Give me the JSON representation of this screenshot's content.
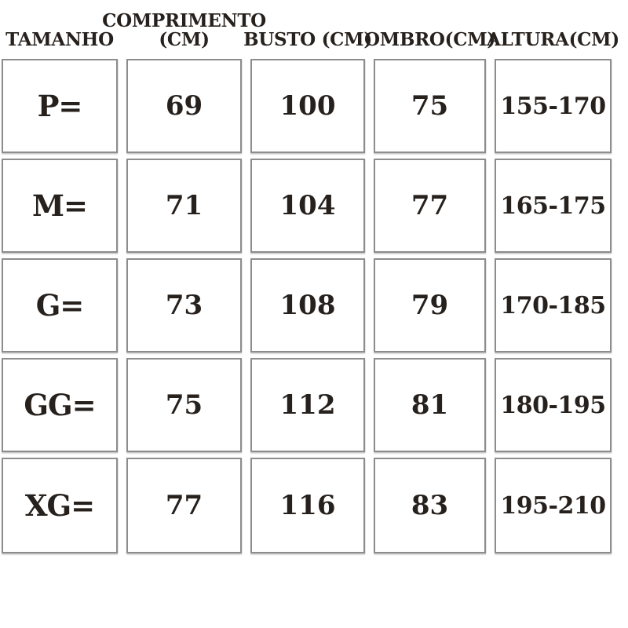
{
  "page": {
    "background": "#ffffff",
    "text_color": "#27211d",
    "border_color": "#8d8d8d"
  },
  "table": {
    "headers": [
      "TAMANHO",
      "COMPRIMENTO\n(CM)",
      "BUSTO (CM)",
      "OMBRO(CM)",
      "ALTURA(CM)"
    ],
    "rows": [
      {
        "size": "P=",
        "comprimento": "69",
        "busto": "100",
        "ombro": "75",
        "altura": "155-170"
      },
      {
        "size": "M=",
        "comprimento": "71",
        "busto": "104",
        "ombro": "77",
        "altura": "165-175"
      },
      {
        "size": "G=",
        "comprimento": "73",
        "busto": "108",
        "ombro": "79",
        "altura": "170-185"
      },
      {
        "size": "GG=",
        "comprimento": "75",
        "busto": "112",
        "ombro": "81",
        "altura": "180-195"
      },
      {
        "size": "XG=",
        "comprimento": "77",
        "busto": "116",
        "ombro": "83",
        "altura": "195-210"
      }
    ]
  },
  "chart_data": {
    "type": "table",
    "title": "",
    "columns": [
      "TAMANHO",
      "COMPRIMENTO (CM)",
      "BUSTO (CM)",
      "OMBRO(CM)",
      "ALTURA(CM)"
    ],
    "rows": [
      [
        "P=",
        69,
        100,
        75,
        "155-170"
      ],
      [
        "M=",
        71,
        104,
        77,
        "165-175"
      ],
      [
        "G=",
        73,
        108,
        79,
        "170-185"
      ],
      [
        "GG=",
        75,
        112,
        81,
        "180-195"
      ],
      [
        "XG=",
        77,
        116,
        83,
        "195-210"
      ]
    ],
    "layout": "size chart grid; header row without borders, data cells as separate bordered boxes with gaps"
  }
}
